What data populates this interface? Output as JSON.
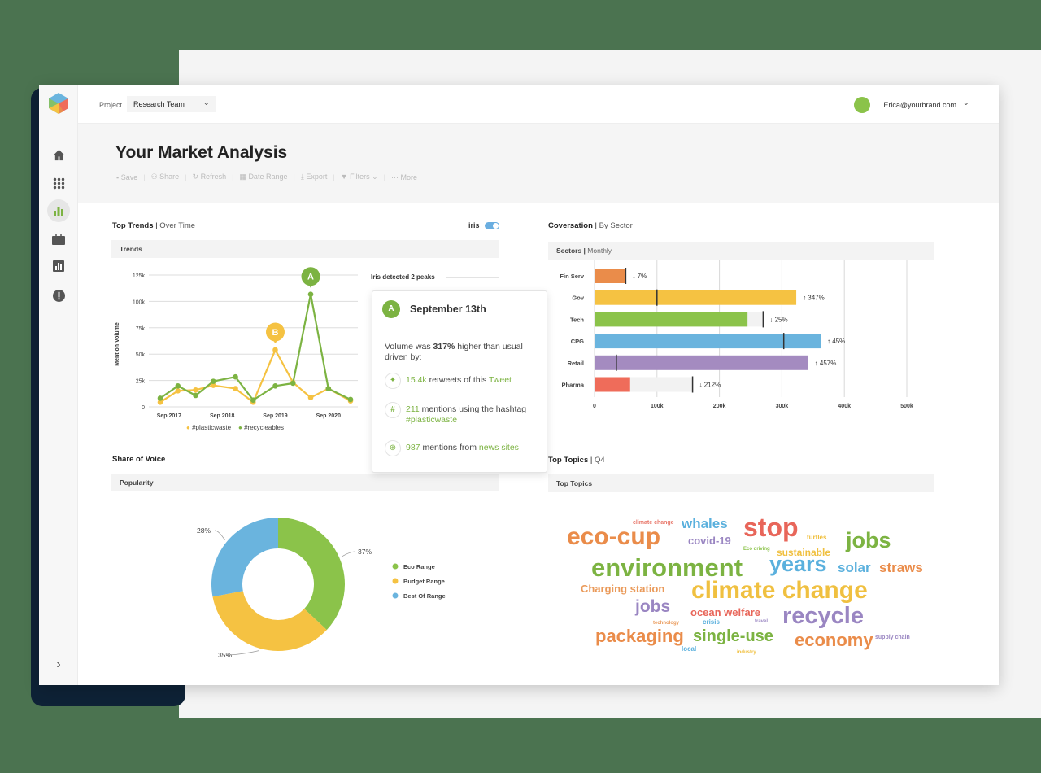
{
  "topbar": {
    "project_label": "Project",
    "project_value": "Research Team",
    "user_email": "Erica@yourbrand.com"
  },
  "sidebar": {
    "items": [
      {
        "icon": "home-icon"
      },
      {
        "icon": "apps-grid-icon"
      },
      {
        "icon": "bar-chart-icon",
        "active": true
      },
      {
        "icon": "briefcase-icon"
      },
      {
        "icon": "report-icon"
      },
      {
        "icon": "alert-icon"
      }
    ],
    "expand_icon": "chevron-right-icon"
  },
  "page": {
    "title": "Your Market Analysis"
  },
  "toolbar": {
    "save": "Save",
    "share": "Share",
    "refresh": "Refresh",
    "date_range": "Date Range",
    "export": "Export",
    "filters": "Filters",
    "more": "More"
  },
  "trends": {
    "title": "Top Trends",
    "subtitle": "Over Time",
    "toggle_label": "iris",
    "toggle_on": true,
    "panel": "Trends",
    "peaks_note": "Iris detected 2 peaks"
  },
  "popup": {
    "badge": "A",
    "title": "September 13th",
    "text1": "Volume was ",
    "pct": "317%",
    "text2": " higher than usual driven by:",
    "r1_num": "15.4k",
    "r1_text": " retweets of this ",
    "r1_link": "Tweet",
    "r2_num": "211",
    "r2_text": " mentions using the hashtag ",
    "r2_link": "#plasticwaste",
    "r3_num": "987",
    "r3_text": " mentions from ",
    "r3_link": "news sites"
  },
  "conversation": {
    "title": "Coversation",
    "subtitle": "By Sector",
    "panel": "Sectors",
    "panel_sub": "Monthly"
  },
  "share": {
    "title": "Share of Voice",
    "panel": "Popularity"
  },
  "topics": {
    "title": "Top Topics",
    "subtitle": "Q4",
    "panel": "Top Topics",
    "words": [
      {
        "text": "climate change",
        "color": "#e8776a"
      },
      {
        "text": "whales",
        "color": "#5ab0dd"
      },
      {
        "text": "stop",
        "color": "#e8665a"
      },
      {
        "text": "turtles",
        "color": "#f0c040"
      },
      {
        "text": "eco-cup",
        "color": "#ea8c4a"
      },
      {
        "text": "covid-19",
        "color": "#9a86c2"
      },
      {
        "text": "Eco driving",
        "color": "#8bc34a"
      },
      {
        "text": "sustainable",
        "color": "#f0c040"
      },
      {
        "text": "jobs",
        "color": "#7cb342"
      },
      {
        "text": "environment",
        "color": "#7cb342"
      },
      {
        "text": "years",
        "color": "#5ab0dd"
      },
      {
        "text": "solar",
        "color": "#5ab0dd"
      },
      {
        "text": "straws",
        "color": "#ea8c4a"
      },
      {
        "text": "Charging station",
        "color": "#ea9a5a"
      },
      {
        "text": "climate change",
        "color": "#f0c040"
      },
      {
        "text": "jobs",
        "color": "#9a86c2"
      },
      {
        "text": "ocean welfare",
        "color": "#e8665a"
      },
      {
        "text": "recycle",
        "color": "#9a86c2"
      },
      {
        "text": "technology",
        "color": "#ea9a5a"
      },
      {
        "text": "crisis",
        "color": "#5ab0dd"
      },
      {
        "text": "travel",
        "color": "#9a86c2"
      },
      {
        "text": "packaging",
        "color": "#ea8c4a"
      },
      {
        "text": "single-use",
        "color": "#7cb342"
      },
      {
        "text": "economy",
        "color": "#ea8c4a"
      },
      {
        "text": "supply chain",
        "color": "#9a86c2"
      },
      {
        "text": "local",
        "color": "#5ab0dd"
      },
      {
        "text": "industry",
        "color": "#f0c040"
      }
    ]
  },
  "chart_data": [
    {
      "type": "line",
      "ylabel": "Mention Volume",
      "ylim": [
        0,
        125000
      ],
      "yticks": [
        "0",
        "25k",
        "50k",
        "75k",
        "100k",
        "125k"
      ],
      "xticks": [
        "Sep 2017",
        "Sep 2018",
        "Sep 2019",
        "Sep 2020"
      ],
      "x": [
        "2017-07",
        "2017-11",
        "2018-03",
        "2018-07",
        "2018-12",
        "2019-04",
        "2019-09",
        "2020-01",
        "2020-05",
        "2020-09",
        "2021-02"
      ],
      "grid": true,
      "legend": "bottom",
      "series": [
        {
          "name": "#plasticwaste",
          "color": "#f5c242",
          "values": [
            4400,
            15200,
            16000,
            20400,
            17300,
            4400,
            54000,
            23200,
            8800,
            17300,
            5700
          ]
        },
        {
          "name": "#recycleables",
          "color": "#7cb342",
          "values": [
            8200,
            19800,
            10800,
            24200,
            28400,
            6400,
            19800,
            22400,
            106700,
            17300,
            7000
          ]
        }
      ],
      "annotations": [
        {
          "label": "A",
          "series": "#recycleables",
          "x": "2020-05",
          "color": "#7cb342"
        },
        {
          "label": "B",
          "series": "#plasticwaste",
          "x": "2019-09",
          "color": "#f5c242"
        }
      ]
    },
    {
      "type": "bar",
      "orientation": "horizontal",
      "xlim": [
        0,
        500000
      ],
      "xticks": [
        "0",
        "100k",
        "200k",
        "300k",
        "400k",
        "500k"
      ],
      "grid": true,
      "categories": [
        "Fin Serv",
        "Gov",
        "Tech",
        "CPG",
        "Retail",
        "Pharma"
      ],
      "values": [
        50000,
        323000,
        245000,
        362000,
        342000,
        57000
      ],
      "previous": [
        50000,
        100000,
        270000,
        303000,
        35000,
        157000
      ],
      "change": [
        "↓ 7%",
        "↑ 347%",
        "↓ 25%",
        "↑ 45%",
        "↑ 457%",
        "↓ 212%"
      ],
      "colors": [
        "#ea8c4a",
        "#f5c242",
        "#8bc34a",
        "#6ab4de",
        "#a48bc0",
        "#ef6c5a"
      ]
    },
    {
      "type": "pie",
      "donut": true,
      "categories": [
        "Eco Range",
        "Budget Range",
        "Best Of Range"
      ],
      "values": [
        37,
        35,
        28
      ],
      "labels": [
        "37%",
        "35%",
        "28%"
      ],
      "colors": [
        "#8bc34a",
        "#f5c242",
        "#6ab4de"
      ],
      "legend": "right"
    }
  ]
}
